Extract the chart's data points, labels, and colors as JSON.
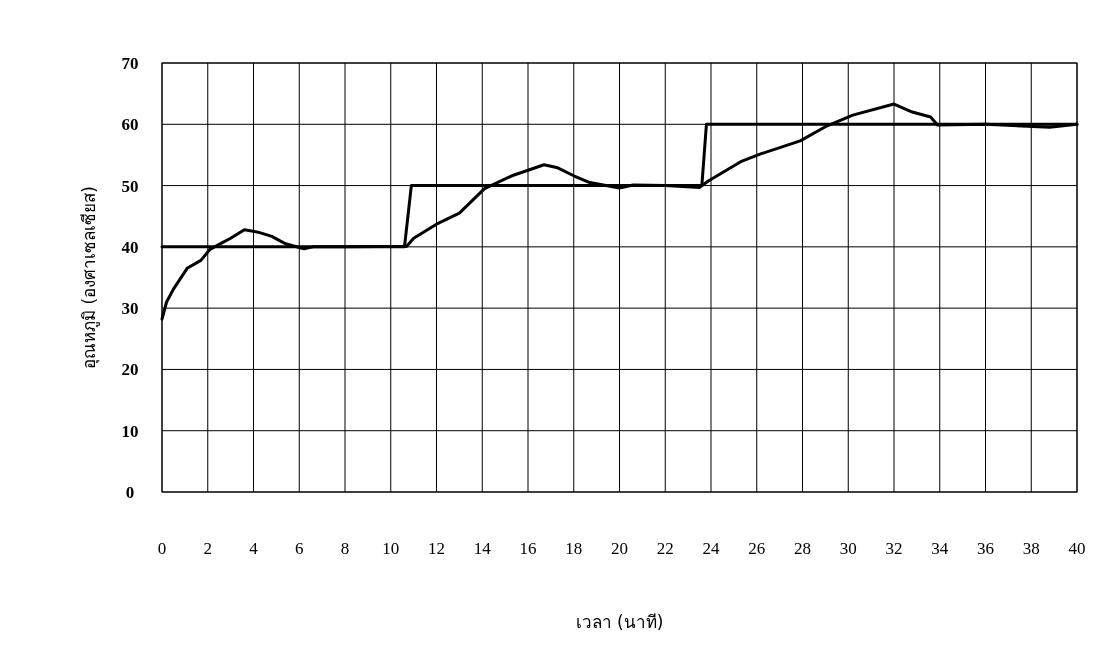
{
  "chart_data": {
    "type": "line",
    "xlabel": "เวลา (นาที)",
    "ylabel": "อุณหภูมิ (องศาเซลเซียส)",
    "xlim": [
      0,
      40
    ],
    "xticks": [
      0,
      2,
      4,
      6,
      8,
      10,
      12,
      14,
      16,
      18,
      20,
      22,
      24,
      26,
      28,
      30,
      32,
      34,
      36,
      38,
      40
    ],
    "ylim": [
      0,
      70
    ],
    "yticks": [
      0,
      10,
      20,
      30,
      40,
      50,
      60,
      70
    ],
    "grid": true,
    "marker": "none",
    "line_style": "solid",
    "series": [
      {
        "color": "#000000",
        "x": [
          0,
          10.6,
          10.9,
          23.6,
          23.8,
          40
        ],
        "values": [
          40,
          40,
          50,
          50,
          60,
          60
        ]
      },
      {
        "color": "#000000",
        "x": [
          0,
          0.2,
          0.5,
          1.1,
          1.7,
          2.1,
          2.6,
          3.0,
          3.6,
          4.2,
          4.8,
          5.1,
          5.4,
          6.2,
          6.6,
          8,
          10.7,
          11.0,
          12.0,
          13.0,
          14.1,
          15.3,
          16.0,
          16.7,
          17.3,
          18.0,
          18.7,
          20.0,
          20.6,
          22.0,
          23.5,
          23.9,
          25.3,
          26.2,
          27.9,
          29.0,
          30.2,
          32.0,
          32.8,
          33.6,
          33.9,
          36,
          38.8,
          40
        ],
        "values": [
          28.2,
          31,
          33.1,
          36.5,
          37.8,
          39.6,
          40.6,
          41.4,
          42.8,
          42.4,
          41.7,
          41.1,
          40.5,
          39.7,
          40,
          40,
          40.1,
          41.4,
          43.7,
          45.5,
          49.5,
          51.6,
          52.5,
          53.4,
          52.9,
          51.6,
          50.5,
          49.6,
          50.1,
          50,
          49.7,
          50.8,
          53.9,
          55.2,
          57.3,
          59.6,
          61.5,
          63.3,
          62,
          61.2,
          59.9,
          60,
          59.5,
          60
        ]
      }
    ]
  }
}
